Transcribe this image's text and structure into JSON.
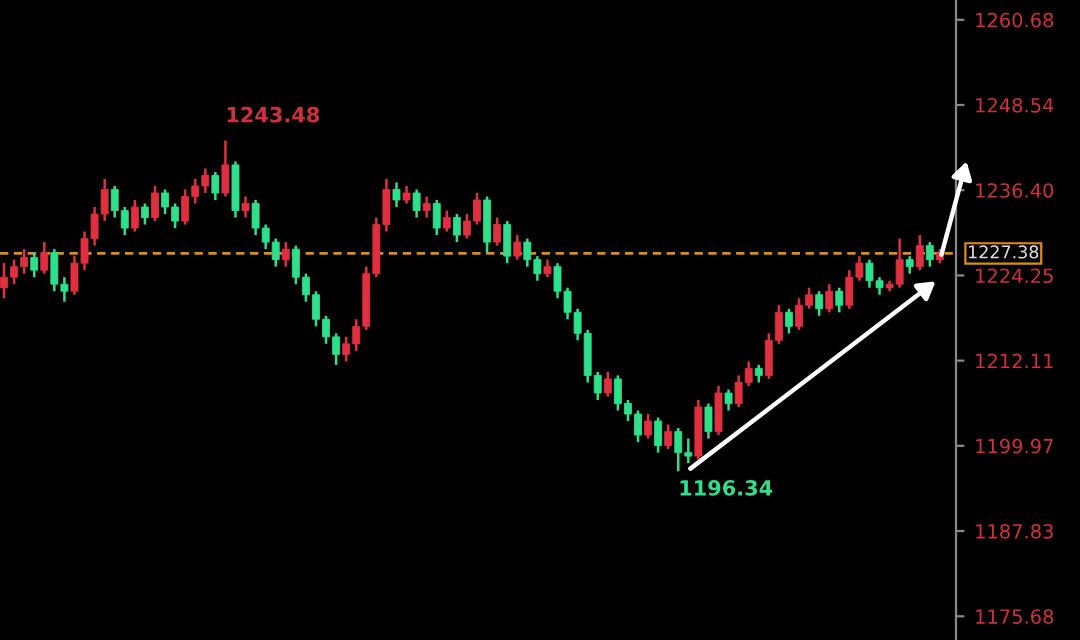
{
  "chart_data": {
    "type": "candlestick",
    "categories": [
      null,
      null,
      null,
      null,
      null,
      null,
      null,
      null,
      null,
      null,
      null,
      null,
      null,
      null,
      null,
      null,
      null,
      null,
      null,
      null,
      null,
      null,
      null,
      null,
      null,
      null,
      null,
      null,
      null,
      null,
      null,
      null,
      null,
      null,
      null,
      null,
      null,
      null,
      null,
      null,
      null,
      null,
      null,
      null,
      null,
      null,
      null,
      null,
      null,
      null,
      null,
      null,
      null,
      null,
      null,
      null,
      null,
      null,
      null,
      null,
      null,
      null,
      null,
      null,
      null,
      null,
      null,
      null,
      null,
      null,
      null,
      null,
      null,
      null,
      null,
      null,
      null,
      null,
      null,
      null,
      null,
      null,
      null,
      null,
      null,
      null,
      null,
      null,
      null,
      null,
      null,
      null,
      null,
      null
    ],
    "ohlc": [
      [
        1222.5,
        1226.0,
        1221.0,
        1224.0
      ],
      [
        1224.0,
        1226.5,
        1223.0,
        1225.5
      ],
      [
        1225.5,
        1228.0,
        1224.5,
        1226.8
      ],
      [
        1226.8,
        1227.5,
        1224.0,
        1225.0
      ],
      [
        1225.0,
        1229.0,
        1224.5,
        1227.5
      ],
      [
        1227.5,
        1228.0,
        1222.0,
        1223.0
      ],
      [
        1223.0,
        1224.0,
        1220.5,
        1222.0
      ],
      [
        1222.0,
        1227.0,
        1221.5,
        1226.0
      ],
      [
        1226.0,
        1230.5,
        1225.0,
        1229.5
      ],
      [
        1229.5,
        1234.0,
        1228.5,
        1233.0
      ],
      [
        1233.0,
        1238.0,
        1232.0,
        1236.5
      ],
      [
        1236.5,
        1237.0,
        1232.5,
        1233.5
      ],
      [
        1233.5,
        1234.0,
        1230.0,
        1231.0
      ],
      [
        1231.0,
        1235.0,
        1230.5,
        1234.0
      ],
      [
        1234.0,
        1234.5,
        1231.5,
        1232.5
      ],
      [
        1232.5,
        1237.0,
        1232.0,
        1236.0
      ],
      [
        1236.0,
        1236.5,
        1233.0,
        1234.0
      ],
      [
        1234.0,
        1234.5,
        1231.0,
        1232.0
      ],
      [
        1232.0,
        1236.5,
        1231.5,
        1235.5
      ],
      [
        1235.5,
        1238.0,
        1234.5,
        1237.0
      ],
      [
        1237.0,
        1239.5,
        1236.0,
        1238.5
      ],
      [
        1238.5,
        1239.0,
        1235.0,
        1236.0
      ],
      [
        1236.0,
        1243.48,
        1235.5,
        1240.0
      ],
      [
        1240.0,
        1240.5,
        1232.5,
        1233.5
      ],
      [
        1233.5,
        1235.5,
        1232.5,
        1234.5
      ],
      [
        1234.5,
        1235.0,
        1230.0,
        1231.0
      ],
      [
        1231.0,
        1231.5,
        1228.0,
        1229.0
      ],
      [
        1229.0,
        1229.5,
        1225.5,
        1226.5
      ],
      [
        1226.5,
        1229.0,
        1225.5,
        1228.0
      ],
      [
        1228.0,
        1228.5,
        1223.0,
        1224.0
      ],
      [
        1224.0,
        1224.5,
        1220.5,
        1221.5
      ],
      [
        1221.5,
        1222.0,
        1217.0,
        1218.0
      ],
      [
        1218.0,
        1218.5,
        1214.5,
        1215.5
      ],
      [
        1215.5,
        1216.0,
        1211.5,
        1213.0
      ],
      [
        1213.0,
        1215.5,
        1212.0,
        1214.5
      ],
      [
        1214.5,
        1218.0,
        1213.5,
        1217.0
      ],
      [
        1217.0,
        1225.5,
        1216.5,
        1224.5
      ],
      [
        1224.5,
        1232.5,
        1224.0,
        1231.5
      ],
      [
        1231.5,
        1238.0,
        1230.5,
        1236.5
      ],
      [
        1236.5,
        1237.5,
        1234.0,
        1235.0
      ],
      [
        1235.0,
        1237.0,
        1234.5,
        1236.0
      ],
      [
        1236.0,
        1236.5,
        1232.5,
        1233.5
      ],
      [
        1233.5,
        1235.5,
        1232.5,
        1234.5
      ],
      [
        1234.5,
        1235.0,
        1230.0,
        1231.0
      ],
      [
        1231.0,
        1233.5,
        1230.5,
        1232.5
      ],
      [
        1232.5,
        1233.0,
        1229.0,
        1230.0
      ],
      [
        1230.0,
        1233.0,
        1229.5,
        1232.0
      ],
      [
        1232.0,
        1236.0,
        1231.5,
        1235.0
      ],
      [
        1235.0,
        1235.5,
        1227.5,
        1229.0
      ],
      [
        1229.0,
        1232.5,
        1228.5,
        1231.5
      ],
      [
        1231.5,
        1232.0,
        1226.0,
        1227.0
      ],
      [
        1227.0,
        1230.0,
        1226.5,
        1229.0
      ],
      [
        1229.0,
        1229.5,
        1225.5,
        1226.5
      ],
      [
        1226.5,
        1227.0,
        1223.5,
        1224.5
      ],
      [
        1224.5,
        1226.5,
        1224.0,
        1225.5
      ],
      [
        1225.5,
        1226.0,
        1221.0,
        1222.0
      ],
      [
        1222.0,
        1222.5,
        1218.0,
        1219.0
      ],
      [
        1219.0,
        1219.5,
        1215.0,
        1216.0
      ],
      [
        1216.0,
        1216.5,
        1209.0,
        1210.0
      ],
      [
        1210.0,
        1210.5,
        1206.5,
        1207.5
      ],
      [
        1207.5,
        1210.5,
        1207.0,
        1209.5
      ],
      [
        1209.5,
        1210.0,
        1205.0,
        1206.0
      ],
      [
        1206.0,
        1206.5,
        1203.5,
        1204.5
      ],
      [
        1204.5,
        1205.0,
        1200.5,
        1201.5
      ],
      [
        1201.5,
        1204.5,
        1201.0,
        1203.5
      ],
      [
        1203.5,
        1204.0,
        1199.0,
        1200.0
      ],
      [
        1200.0,
        1203.0,
        1199.5,
        1202.0
      ],
      [
        1202.0,
        1202.5,
        1196.34,
        1199.0
      ],
      [
        1199.0,
        1201.0,
        1197.5,
        1198.5
      ],
      [
        1198.5,
        1206.5,
        1198.0,
        1205.5
      ],
      [
        1205.5,
        1206.0,
        1201.0,
        1202.0
      ],
      [
        1202.0,
        1208.5,
        1201.5,
        1207.5
      ],
      [
        1207.5,
        1208.0,
        1205.0,
        1206.0
      ],
      [
        1206.0,
        1210.0,
        1205.5,
        1209.0
      ],
      [
        1209.0,
        1212.0,
        1208.5,
        1211.0
      ],
      [
        1211.0,
        1211.5,
        1209.0,
        1210.0
      ],
      [
        1210.0,
        1216.0,
        1209.5,
        1215.0
      ],
      [
        1215.0,
        1220.0,
        1214.5,
        1219.0
      ],
      [
        1219.0,
        1219.5,
        1216.0,
        1217.0
      ],
      [
        1217.0,
        1221.0,
        1216.5,
        1220.0
      ],
      [
        1220.0,
        1222.5,
        1219.5,
        1221.5
      ],
      [
        1221.5,
        1222.0,
        1218.5,
        1219.5
      ],
      [
        1219.5,
        1223.0,
        1219.0,
        1222.0
      ],
      [
        1222.0,
        1222.5,
        1219.0,
        1220.0
      ],
      [
        1220.0,
        1225.0,
        1219.5,
        1224.0
      ],
      [
        1224.0,
        1227.0,
        1223.5,
        1226.0
      ],
      [
        1226.0,
        1226.5,
        1222.5,
        1223.5
      ],
      [
        1223.5,
        1224.0,
        1221.5,
        1222.5
      ],
      [
        1222.5,
        1223.5,
        1222.0,
        1223.0
      ],
      [
        1223.0,
        1229.5,
        1222.5,
        1226.5
      ],
      [
        1226.5,
        1227.0,
        1224.5,
        1225.5
      ],
      [
        1225.5,
        1230.0,
        1225.0,
        1228.5
      ],
      [
        1228.5,
        1229.0,
        1225.5,
        1226.5
      ],
      [
        1226.5,
        1228.0,
        1226.0,
        1227.38
      ]
    ],
    "ylim": [
      1172.3,
      1263.5
    ],
    "yticks": [
      1175.68,
      1187.83,
      1199.97,
      1212.11,
      1224.25,
      {
        "value": 1236.4,
        "label": "1236.40"
      },
      1248.54,
      1260.68
    ],
    "tick_labels": "y",
    "grid": false,
    "ref_lines": [
      {
        "axis": "y",
        "value": 1227.38,
        "label": "1227.38",
        "color": "#e08a1e",
        "line_style": "dashed"
      }
    ],
    "annotations": [
      "1243.48",
      "1196.34"
    ]
  }
}
